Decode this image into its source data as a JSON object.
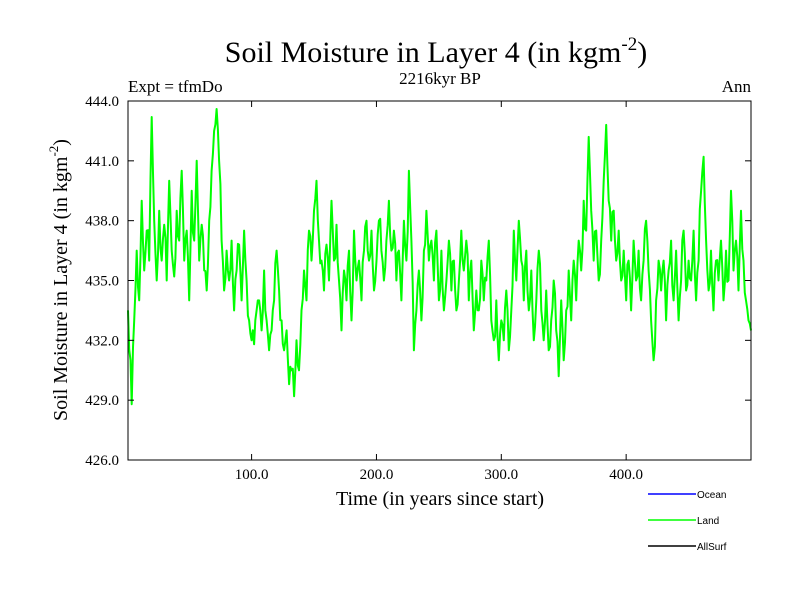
{
  "chart_data": {
    "type": "line",
    "title_main": "Soil Moisture in Layer 4 (in kgm",
    "title_sup": "-2",
    "title_close": ")",
    "subtitle": "2216kyr BP",
    "left_label": "Expt = tfmDo",
    "right_label": "Ann",
    "xlabel": "Time (in years since start)",
    "ylabel_main": "Soil Moisture in Layer 4 (in kgm",
    "ylabel_sup": "-2",
    "ylabel_close": ")",
    "xlim": [
      1,
      500
    ],
    "ylim": [
      426,
      444
    ],
    "x_ticks": [
      100,
      200,
      300,
      400
    ],
    "x_tick_labels": [
      "100.0",
      "200.0",
      "300.0",
      "400.0"
    ],
    "y_ticks": [
      426,
      429,
      432,
      435,
      438,
      441,
      444
    ],
    "y_tick_labels": [
      "426.0",
      "429.0",
      "432.0",
      "435.0",
      "438.0",
      "441.0",
      "444.0"
    ],
    "legend": [
      {
        "name": "Ocean",
        "color": "#0000ff"
      },
      {
        "name": "Land",
        "color": "#00ff00"
      },
      {
        "name": "AllSurf",
        "color": "#000000"
      }
    ],
    "series": [
      {
        "name": "Land",
        "color": "#00ff00",
        "anchors": [
          [
            1,
            433.5
          ],
          [
            3,
            431.0
          ],
          [
            4,
            428.8
          ],
          [
            6,
            433.0
          ],
          [
            8,
            436.5
          ],
          [
            10,
            434.0
          ],
          [
            12,
            439.0
          ],
          [
            14,
            435.5
          ],
          [
            16,
            437.5
          ],
          [
            18,
            436.0
          ],
          [
            20,
            443.2
          ],
          [
            22,
            438.0
          ],
          [
            24,
            435.0
          ],
          [
            26,
            438.5
          ],
          [
            28,
            436.0
          ],
          [
            30,
            437.8
          ],
          [
            32,
            435.0
          ],
          [
            34,
            440.0
          ],
          [
            36,
            436.5
          ],
          [
            38,
            435.2
          ],
          [
            40,
            438.5
          ],
          [
            42,
            437.0
          ],
          [
            44,
            440.5
          ],
          [
            46,
            436.0
          ],
          [
            48,
            437.5
          ],
          [
            50,
            434.0
          ],
          [
            52,
            439.5
          ],
          [
            54,
            437.0
          ],
          [
            56,
            441.0
          ],
          [
            58,
            436.0
          ],
          [
            60,
            437.8
          ],
          [
            62,
            435.5
          ],
          [
            64,
            434.5
          ],
          [
            66,
            438.0
          ],
          [
            68,
            440.5
          ],
          [
            70,
            442.5
          ],
          [
            72,
            443.6
          ],
          [
            74,
            441.0
          ],
          [
            76,
            437.0
          ],
          [
            78,
            434.5
          ],
          [
            80,
            436.5
          ],
          [
            82,
            435.0
          ],
          [
            84,
            437.0
          ],
          [
            86,
            433.5
          ],
          [
            88,
            435.5
          ],
          [
            90,
            436.8
          ],
          [
            92,
            434.0
          ],
          [
            94,
            437.5
          ],
          [
            96,
            435.0
          ],
          [
            98,
            433.0
          ],
          [
            100,
            432.0
          ],
          [
            102,
            431.8
          ],
          [
            104,
            433.5
          ],
          [
            106,
            434.0
          ],
          [
            108,
            432.5
          ],
          [
            110,
            435.5
          ],
          [
            112,
            433.0
          ],
          [
            114,
            431.5
          ],
          [
            116,
            432.5
          ],
          [
            118,
            434.0
          ],
          [
            120,
            436.5
          ],
          [
            122,
            434.5
          ],
          [
            124,
            433.0
          ],
          [
            126,
            431.5
          ],
          [
            128,
            432.5
          ],
          [
            130,
            429.8
          ],
          [
            132,
            430.5
          ],
          [
            134,
            429.2
          ],
          [
            136,
            432.0
          ],
          [
            138,
            430.5
          ],
          [
            140,
            433.5
          ],
          [
            142,
            435.5
          ],
          [
            144,
            434.0
          ],
          [
            146,
            437.5
          ],
          [
            148,
            436.0
          ],
          [
            150,
            438.5
          ],
          [
            152,
            440.0
          ],
          [
            154,
            437.0
          ],
          [
            156,
            436.0
          ],
          [
            158,
            434.5
          ],
          [
            160,
            436.8
          ],
          [
            162,
            435.0
          ],
          [
            164,
            439.0
          ],
          [
            166,
            436.0
          ],
          [
            168,
            437.8
          ],
          [
            170,
            435.0
          ],
          [
            172,
            432.5
          ],
          [
            174,
            435.5
          ],
          [
            176,
            434.0
          ],
          [
            178,
            436.5
          ],
          [
            180,
            433.0
          ],
          [
            182,
            437.5
          ],
          [
            184,
            435.0
          ],
          [
            186,
            436.0
          ],
          [
            188,
            434.0
          ],
          [
            190,
            436.5
          ],
          [
            192,
            438.0
          ],
          [
            194,
            436.0
          ],
          [
            196,
            437.5
          ],
          [
            198,
            434.5
          ],
          [
            200,
            436.0
          ],
          [
            202,
            438.0
          ],
          [
            204,
            436.5
          ],
          [
            206,
            435.0
          ],
          [
            208,
            437.0
          ],
          [
            210,
            439.0
          ],
          [
            212,
            436.5
          ],
          [
            214,
            437.5
          ],
          [
            216,
            435.0
          ],
          [
            218,
            436.5
          ],
          [
            220,
            434.0
          ],
          [
            222,
            438.0
          ],
          [
            224,
            436.0
          ],
          [
            226,
            440.5
          ],
          [
            228,
            437.0
          ],
          [
            230,
            431.5
          ],
          [
            232,
            433.5
          ],
          [
            234,
            435.5
          ],
          [
            236,
            433.0
          ],
          [
            238,
            436.5
          ],
          [
            240,
            438.5
          ],
          [
            242,
            436.0
          ],
          [
            244,
            437.0
          ],
          [
            246,
            435.0
          ],
          [
            248,
            437.5
          ],
          [
            250,
            434.0
          ],
          [
            252,
            436.5
          ],
          [
            254,
            433.5
          ],
          [
            256,
            435.0
          ],
          [
            258,
            437.0
          ],
          [
            260,
            434.5
          ],
          [
            262,
            436.0
          ],
          [
            264,
            433.5
          ],
          [
            266,
            435.0
          ],
          [
            268,
            437.5
          ],
          [
            270,
            435.5
          ],
          [
            272,
            437.0
          ],
          [
            274,
            434.0
          ],
          [
            276,
            436.0
          ],
          [
            278,
            432.5
          ],
          [
            280,
            434.5
          ],
          [
            282,
            433.5
          ],
          [
            284,
            436.0
          ],
          [
            286,
            434.0
          ],
          [
            288,
            435.0
          ],
          [
            290,
            437.0
          ],
          [
            292,
            433.0
          ],
          [
            294,
            432.0
          ],
          [
            296,
            434.0
          ],
          [
            298,
            431.0
          ],
          [
            300,
            433.0
          ],
          [
            302,
            432.0
          ],
          [
            304,
            434.5
          ],
          [
            306,
            431.5
          ],
          [
            308,
            433.5
          ],
          [
            310,
            437.5
          ],
          [
            312,
            435.0
          ],
          [
            314,
            438.0
          ],
          [
            316,
            436.0
          ],
          [
            318,
            434.0
          ],
          [
            320,
            436.5
          ],
          [
            322,
            433.5
          ],
          [
            324,
            435.5
          ],
          [
            326,
            432.0
          ],
          [
            328,
            434.0
          ],
          [
            330,
            436.5
          ],
          [
            332,
            433.5
          ],
          [
            334,
            432.0
          ],
          [
            336,
            434.5
          ],
          [
            338,
            431.5
          ],
          [
            340,
            433.0
          ],
          [
            342,
            435.0
          ],
          [
            344,
            432.5
          ],
          [
            346,
            430.2
          ],
          [
            348,
            434.0
          ],
          [
            350,
            431.0
          ],
          [
            352,
            433.5
          ],
          [
            354,
            435.5
          ],
          [
            356,
            433.0
          ],
          [
            358,
            436.0
          ],
          [
            360,
            434.0
          ],
          [
            362,
            437.0
          ],
          [
            364,
            435.5
          ],
          [
            366,
            439.0
          ],
          [
            368,
            437.5
          ],
          [
            370,
            442.2
          ],
          [
            372,
            438.5
          ],
          [
            374,
            436.0
          ],
          [
            376,
            437.5
          ],
          [
            378,
            435.0
          ],
          [
            380,
            437.0
          ],
          [
            382,
            440.0
          ],
          [
            384,
            442.8
          ],
          [
            386,
            439.0
          ],
          [
            388,
            437.0
          ],
          [
            390,
            438.5
          ],
          [
            392,
            436.0
          ],
          [
            394,
            437.5
          ],
          [
            396,
            435.0
          ],
          [
            398,
            436.5
          ],
          [
            400,
            434.0
          ],
          [
            402,
            436.0
          ],
          [
            404,
            433.5
          ],
          [
            406,
            437.0
          ],
          [
            408,
            435.0
          ],
          [
            410,
            436.5
          ],
          [
            412,
            434.0
          ],
          [
            414,
            436.0
          ],
          [
            416,
            438.0
          ],
          [
            418,
            435.5
          ],
          [
            420,
            433.0
          ],
          [
            422,
            431.0
          ],
          [
            424,
            434.0
          ],
          [
            426,
            436.0
          ],
          [
            428,
            434.5
          ],
          [
            430,
            436.0
          ],
          [
            432,
            433.0
          ],
          [
            434,
            435.5
          ],
          [
            436,
            437.0
          ],
          [
            438,
            434.0
          ],
          [
            440,
            436.5
          ],
          [
            442,
            433.0
          ],
          [
            444,
            435.0
          ],
          [
            446,
            437.5
          ],
          [
            448,
            434.5
          ],
          [
            450,
            436.0
          ],
          [
            452,
            435.0
          ],
          [
            454,
            437.5
          ],
          [
            456,
            434.0
          ],
          [
            458,
            436.0
          ],
          [
            460,
            439.5
          ],
          [
            462,
            441.2
          ],
          [
            464,
            437.0
          ],
          [
            466,
            434.5
          ],
          [
            468,
            436.5
          ],
          [
            470,
            433.5
          ],
          [
            472,
            436.0
          ],
          [
            474,
            435.0
          ],
          [
            476,
            437.0
          ],
          [
            478,
            434.0
          ],
          [
            480,
            436.5
          ],
          [
            482,
            435.0
          ],
          [
            484,
            439.5
          ],
          [
            486,
            435.5
          ],
          [
            488,
            437.0
          ],
          [
            490,
            434.5
          ],
          [
            492,
            438.5
          ],
          [
            494,
            436.0
          ],
          [
            496,
            434.0
          ],
          [
            498,
            433.0
          ],
          [
            500,
            432.5
          ]
        ]
      }
    ]
  }
}
